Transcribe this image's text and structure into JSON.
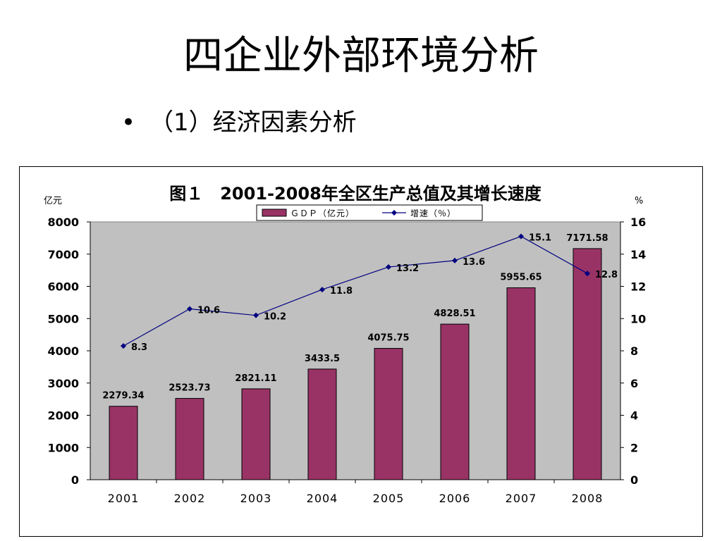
{
  "slide": {
    "title": "四企业外部环境分析",
    "bullet_symbol": "•",
    "bullet_text": "（1）经济因素分析"
  },
  "chart_data": {
    "type": "bar",
    "title": "图１　2001-2008年全区生产总值及其增长速度",
    "categories": [
      "2001",
      "2002",
      "2003",
      "2004",
      "2005",
      "2006",
      "2007",
      "2008"
    ],
    "series": [
      {
        "name": "ＧＤＰ（亿元）",
        "type": "bar",
        "axis": "left",
        "color": "#993366",
        "values": [
          2279.34,
          2523.73,
          2821.11,
          3433.5,
          4075.75,
          4828.51,
          5955.65,
          7171.58
        ],
        "labels": [
          "2279.34",
          "2523.73",
          "2821.11",
          "3433.5",
          "4075.75",
          "4828.51",
          "5955.65",
          "7171.58"
        ]
      },
      {
        "name": "增速（％）",
        "type": "line",
        "axis": "right",
        "color": "#000080",
        "values": [
          8.3,
          10.6,
          10.2,
          11.8,
          13.2,
          13.6,
          15.1,
          12.8
        ],
        "labels": [
          "8.3",
          "10.6",
          "10.2",
          "11.8",
          "13.2",
          "13.6",
          "15.1",
          "12.8"
        ]
      }
    ],
    "y_left": {
      "label": "亿元",
      "range": [
        0,
        8000
      ],
      "ticks": [
        "0",
        "1000",
        "2000",
        "3000",
        "4000",
        "5000",
        "6000",
        "7000",
        "8000"
      ]
    },
    "y_right": {
      "label": "%",
      "range": [
        0,
        16
      ],
      "ticks": [
        "0",
        "2",
        "4",
        "6",
        "8",
        "10",
        "12",
        "14",
        "16"
      ]
    },
    "plot_background": "#c0c0c0",
    "legend_position": "top-center",
    "grid": false
  }
}
